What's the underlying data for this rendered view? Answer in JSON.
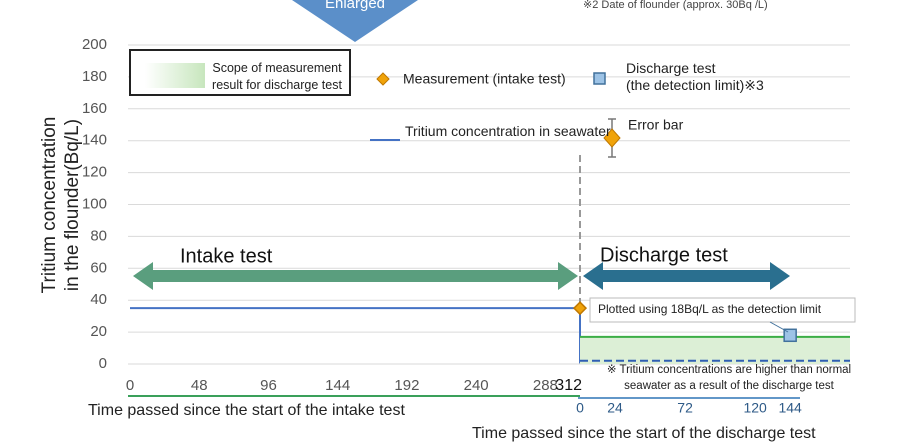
{
  "header": {
    "enlarged": "Enlarged",
    "note": "※2 Date of flounder (approx. 30Bq /L)"
  },
  "chart_data": {
    "type": "line",
    "y_label": [
      "Tritium concentration",
      "in the flounder(Bq/L)"
    ],
    "xlabel": "Time passed since the start of the intake test",
    "x2label": "Time passed since the start of the discharge test",
    "ylim": [
      0,
      200
    ],
    "yticks": [
      0,
      20,
      40,
      60,
      80,
      100,
      120,
      140,
      160,
      180,
      200
    ],
    "xlim": [
      0,
      312
    ],
    "xticks": [
      0,
      48,
      96,
      144,
      192,
      240,
      288,
      312
    ],
    "x2lim": [
      0,
      185
    ],
    "x2ticks": [
      0,
      24,
      72,
      120,
      144
    ],
    "grid": true,
    "series": [
      {
        "name": "Tritium concentration in seawater",
        "color": "#4472c4",
        "x": [
          0,
          312
        ],
        "values": [
          35,
          35
        ],
        "x2": [
          0,
          0,
          185
        ],
        "values2": [
          35,
          1,
          1
        ]
      },
      {
        "name": "Scope of measurement\nresult for discharge test",
        "color": "#dcefd6",
        "edge_color": "#3cae46",
        "style": "band",
        "x2": [
          0,
          185
        ],
        "values2": [
          17,
          17
        ]
      },
      {
        "color": "#2f5fb3",
        "dash": true,
        "x2": [
          0,
          185
        ],
        "values2": [
          2,
          2
        ]
      },
      {
        "name": "Measurement (intake test)",
        "color": "#f0a30a",
        "marker": "diamond",
        "x": [
          312
        ],
        "values": [
          35
        ]
      },
      {
        "name": "Discharge test\n (the detection limit)※3",
        "color": "#9dc3e6",
        "edge_color": "#41719c",
        "marker": "square",
        "x2": [
          144
        ],
        "values2": [
          18
        ]
      }
    ],
    "annotations": {
      "intake": "Intake test",
      "discharge": "Discharge test",
      "error_bar": "Error bar",
      "detection": "Plotted using 18Bq/L as the detection limit",
      "note": "※ Tritium concentrations are higher than normal\nseawater as a result of the discharge test"
    }
  }
}
